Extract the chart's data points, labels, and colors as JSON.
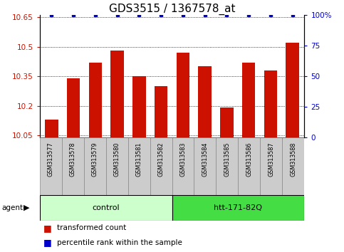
{
  "title": "GDS3515 / 1367578_at",
  "samples": [
    "GSM313577",
    "GSM313578",
    "GSM313579",
    "GSM313580",
    "GSM313581",
    "GSM313582",
    "GSM313583",
    "GSM313584",
    "GSM313585",
    "GSM313586",
    "GSM313587",
    "GSM313588"
  ],
  "values": [
    10.13,
    10.34,
    10.42,
    10.48,
    10.35,
    10.3,
    10.47,
    10.4,
    10.19,
    10.42,
    10.38,
    10.52
  ],
  "percentile_values": [
    100,
    100,
    100,
    100,
    100,
    100,
    100,
    100,
    100,
    100,
    100,
    100
  ],
  "ylim_left": [
    10.04,
    10.66
  ],
  "ylim_right": [
    0,
    100
  ],
  "yticks_left": [
    10.05,
    10.2,
    10.35,
    10.5,
    10.65
  ],
  "yticks_right": [
    0,
    25,
    50,
    75,
    100
  ],
  "bar_color": "#cc1100",
  "dot_color": "#0000cc",
  "grid_color": "#000000",
  "agent_label": "agent",
  "group1_label": "control",
  "group2_label": "htt-171-82Q",
  "group1_samples": 6,
  "group2_samples": 6,
  "group1_bg": "#ccffcc",
  "group2_bg": "#44dd44",
  "sample_bg": "#cccccc",
  "legend_bar_label": "transformed count",
  "legend_dot_label": "percentile rank within the sample",
  "title_fontsize": 11,
  "tick_fontsize": 7.5,
  "sample_fontsize": 5.8,
  "group_fontsize": 8,
  "legend_fontsize": 7.5
}
